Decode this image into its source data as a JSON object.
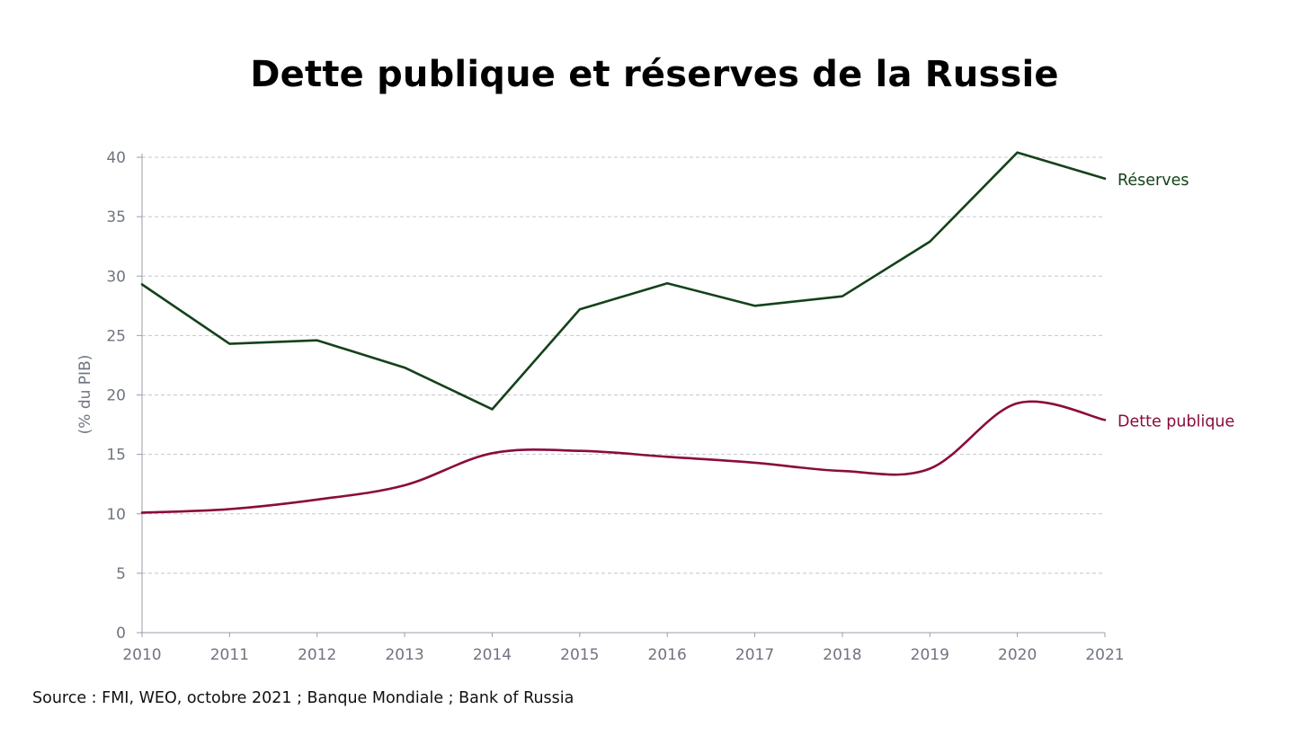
{
  "chart_data": {
    "type": "line",
    "title": "Dette publique et réserves de la Russie",
    "xlabel": "",
    "ylabel": "(% du PIB)",
    "x": [
      2010,
      2011,
      2012,
      2013,
      2014,
      2015,
      2016,
      2017,
      2018,
      2019,
      2020,
      2021
    ],
    "x_tick_labels": [
      "2010",
      "2011",
      "2012",
      "2013",
      "2014",
      "2015",
      "2016",
      "2017",
      "2018",
      "2019",
      "2020",
      "2021"
    ],
    "ylim": [
      0,
      40
    ],
    "y_ticks": [
      0,
      5,
      10,
      15,
      20,
      25,
      30,
      35,
      40
    ],
    "y_tick_labels": [
      "0",
      "5",
      "10",
      "15",
      "20",
      "25",
      "30",
      "35",
      "40"
    ],
    "grid": "horizontal dashed",
    "legend": "inline labels at right end of lines",
    "series": [
      {
        "name": "Réserves",
        "color": "#14421b",
        "values": [
          29.3,
          24.3,
          24.6,
          22.3,
          18.8,
          27.2,
          29.4,
          27.5,
          28.3,
          32.9,
          40.4,
          38.2
        ]
      },
      {
        "name": "Dette publique",
        "color": "#8a0c3c",
        "values": [
          10.1,
          10.4,
          11.2,
          12.4,
          15.1,
          15.3,
          14.8,
          14.3,
          13.6,
          13.8,
          19.3,
          17.9
        ]
      }
    ],
    "source": "Source : FMI, WEO, octobre 2021 ; Banque Mondiale ; Bank of Russia"
  }
}
